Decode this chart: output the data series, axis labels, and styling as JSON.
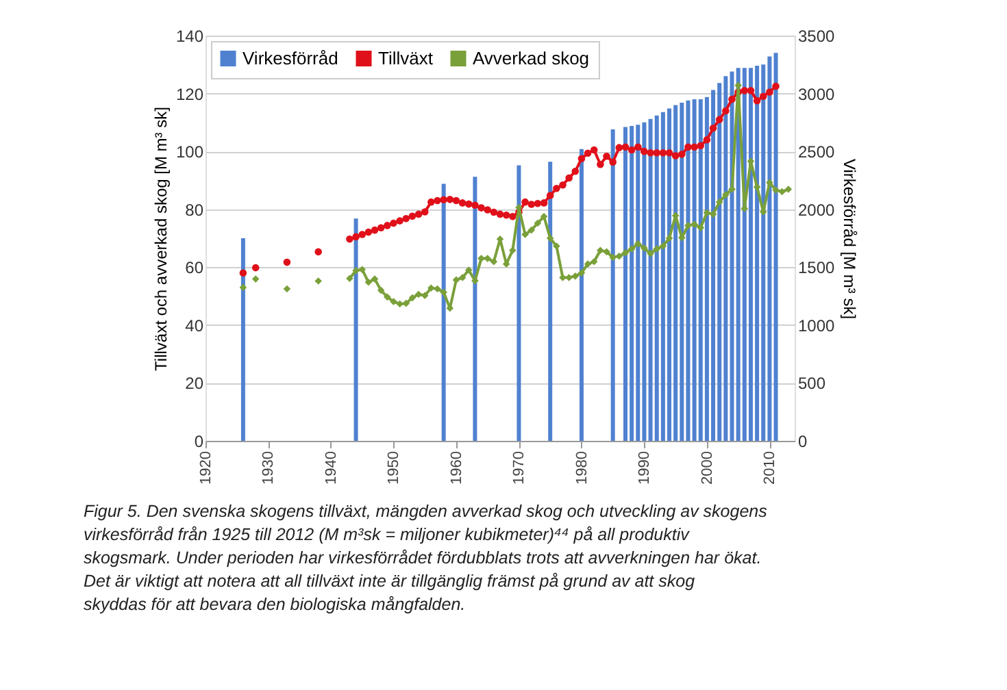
{
  "chart_data": {
    "type": "line",
    "ylabel": "Tillväxt och avverkad skog [M m³ sk]",
    "y2label": "Virkesförråd [M m³ sk]",
    "xlim": [
      1920,
      2014
    ],
    "xticks": [
      1920,
      1930,
      1940,
      1950,
      1960,
      1970,
      1980,
      1990,
      2000,
      2010
    ],
    "ylim": [
      0,
      140
    ],
    "yticks": [
      0,
      20,
      40,
      60,
      80,
      100,
      120,
      140
    ],
    "y2lim": [
      0,
      3500
    ],
    "y2ticks": [
      0,
      500,
      1000,
      1500,
      2000,
      2500,
      3000,
      3500
    ],
    "grid": "y",
    "legend": "top left",
    "annotations": [
      "Figur 5. Den svenska skogens tillväxt, mängden avverkad skog och utveckling av skogens virkesförråd från 1925 till 2012 (M m³sk = miljoner kubikmeter)⁴⁴ på all produktiv skogsmark. Under perioden har virkesförrådet fördubblats trots att avverkningen har ökat. Det är viktigt att notera att all tillväxt inte är tillgänglig främst på grund av att skog skyddas för att bevara den biologiska mångfalden."
    ],
    "series": [
      {
        "name": "Virkesförråd",
        "type": "bar",
        "axis": "y2",
        "color": "#4f81d0",
        "x": [
          1926,
          1944,
          1958,
          1963,
          1970,
          1975,
          1980,
          1985,
          1987,
          1988,
          1989,
          1990,
          1991,
          1992,
          1993,
          1994,
          1995,
          1996,
          1997,
          1998,
          1999,
          2000,
          2001,
          2002,
          2003,
          2004,
          2005,
          2006,
          2007,
          2008,
          2009,
          2010,
          2011
        ],
        "values": [
          1750,
          1920,
          2220,
          2280,
          2380,
          2410,
          2520,
          2690,
          2710,
          2720,
          2730,
          2750,
          2780,
          2810,
          2840,
          2870,
          2900,
          2920,
          2940,
          2950,
          2950,
          2970,
          3030,
          3090,
          3150,
          3190,
          3220,
          3220,
          3220,
          3240,
          3250,
          3320,
          3350
        ]
      },
      {
        "name": "Tillväxt",
        "color": "#e0101a",
        "marker": "circle",
        "x": [
          1926,
          1927,
          1928,
          1929,
          1933,
          1934,
          1938,
          1939,
          1943,
          1944,
          1945,
          1946,
          1947,
          1948,
          1949,
          1950,
          1951,
          1952,
          1953,
          1954,
          1955,
          1956,
          1957,
          1958,
          1959,
          1960,
          1961,
          1962,
          1963,
          1964,
          1965,
          1966,
          1967,
          1968,
          1969,
          1970,
          1971,
          1972,
          1973,
          1974,
          1975,
          1976,
          1977,
          1978,
          1979,
          1980,
          1981,
          1982,
          1983,
          1984,
          1985,
          1986,
          1987,
          1988,
          1989,
          1990,
          1991,
          1992,
          1993,
          1994,
          1995,
          1996,
          1997,
          1998,
          1999,
          2000,
          2001,
          2002,
          2003,
          2004,
          2005,
          2006,
          2007,
          2008,
          2009,
          2010,
          2011
        ],
        "values": [
          58,
          null,
          59.8,
          null,
          61.7,
          null,
          65.3,
          null,
          69.7,
          70.5,
          71.3,
          72.1,
          72.8,
          73.6,
          74.4,
          75.2,
          76,
          76.8,
          77.6,
          78.3,
          79.1,
          82.5,
          83,
          83.3,
          83.4,
          83,
          82.2,
          81.8,
          81.4,
          80.5,
          79.8,
          79,
          78.3,
          78,
          77.5,
          79,
          82.5,
          81.7,
          82,
          82.2,
          84.8,
          87.2,
          88.4,
          90.8,
          93.1,
          97.5,
          99.4,
          100.5,
          95.5,
          98.3,
          96.3,
          101.3,
          101.5,
          100.5,
          101.5,
          100,
          99.5,
          99.5,
          99.5,
          99.5,
          98.5,
          99,
          101.5,
          101.5,
          102,
          104,
          108,
          111,
          114,
          118,
          120.5,
          121,
          121,
          117.5,
          119,
          120.5,
          122.5
        ]
      },
      {
        "name": "Avverkad skog",
        "color": "#7aa03a",
        "marker": "diamond",
        "x": [
          1926,
          1927,
          1928,
          1929,
          1933,
          1934,
          1938,
          1939,
          1943,
          1944,
          1945,
          1946,
          1947,
          1948,
          1949,
          1950,
          1951,
          1952,
          1953,
          1954,
          1955,
          1956,
          1957,
          1958,
          1959,
          1960,
          1961,
          1962,
          1963,
          1964,
          1965,
          1966,
          1967,
          1968,
          1969,
          1970,
          1971,
          1972,
          1973,
          1974,
          1975,
          1976,
          1977,
          1978,
          1979,
          1980,
          1981,
          1982,
          1983,
          1984,
          1985,
          1986,
          1987,
          1988,
          1989,
          1990,
          1991,
          1992,
          1993,
          1994,
          1995,
          1996,
          1997,
          1998,
          1999,
          2000,
          2001,
          2002,
          2003,
          2004,
          2005,
          2006,
          2007,
          2008,
          2009,
          2010,
          2011,
          2012,
          2013
        ],
        "values": [
          53,
          null,
          55.9,
          null,
          52.5,
          null,
          55.2,
          null,
          56.1,
          58.8,
          59.2,
          54.8,
          55.9,
          52,
          49.7,
          48.1,
          47.3,
          47.5,
          49.4,
          50.6,
          50.2,
          52.8,
          52.5,
          51.3,
          45.8,
          55.6,
          56.4,
          59,
          55.3,
          63,
          63,
          61.9,
          69.7,
          61.1,
          65.8,
          80.6,
          71.3,
          72.8,
          75.2,
          77.5,
          70,
          67.3,
          56.4,
          56.4,
          56.9,
          58,
          61.1,
          61.9,
          65.8,
          65.3,
          63.4,
          63.8,
          65,
          66.3,
          68.1,
          66.6,
          64.7,
          66.3,
          67.3,
          70,
          77.8,
          70.2,
          74.4,
          74.8,
          73.6,
          78.8,
          78.3,
          82.5,
          85,
          86.9,
          122.8,
          80.3,
          96.6,
          87.7,
          79.1,
          89.2,
          86.6,
          86.1,
          86.9
        ]
      }
    ]
  }
}
